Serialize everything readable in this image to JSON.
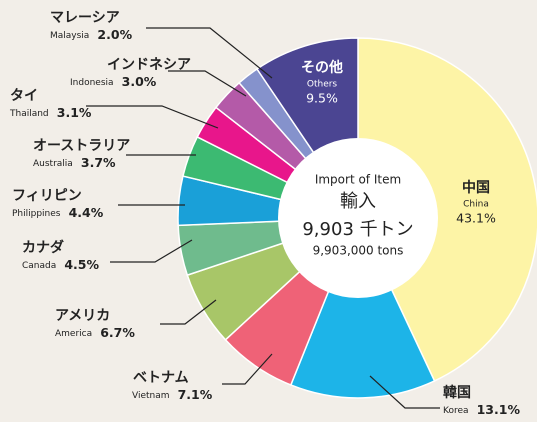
{
  "chart_data": {
    "type": "pie",
    "categories": [
      "中国",
      "韓国",
      "ベトナム",
      "アメリカ",
      "カナダ",
      "フィリピン",
      "オーストラリア",
      "タイ",
      "インドネシア",
      "マレーシア",
      "その他"
    ],
    "categories_en": [
      "China",
      "Korea",
      "Vietnam",
      "America",
      "Canada",
      "Philippines",
      "Australia",
      "Thailand",
      "Indonesia",
      "Malaysia",
      "Others"
    ],
    "values": [
      43.1,
      13.1,
      7.1,
      6.7,
      4.5,
      4.4,
      3.7,
      3.1,
      3.0,
      2.0,
      9.5
    ],
    "value_labels": [
      "43.1%",
      "13.1%",
      "7.1%",
      "6.7%",
      "4.5%",
      "4.4%",
      "3.7%",
      "3.1%",
      "3.0%",
      "2.0%",
      "9.5%"
    ],
    "colors": [
      "#fdf4a6",
      "#1db4e8",
      "#ef6277",
      "#a8c668",
      "#6fbb8d",
      "#1aa0d8",
      "#3cba72",
      "#e8168b",
      "#b45aa8",
      "#8592cc",
      "#4b4592"
    ],
    "center_text": {
      "line1": "Import of Item",
      "line2": "輸入",
      "line3": "9,903 千トン",
      "line4": "9,903,000 tons"
    }
  }
}
